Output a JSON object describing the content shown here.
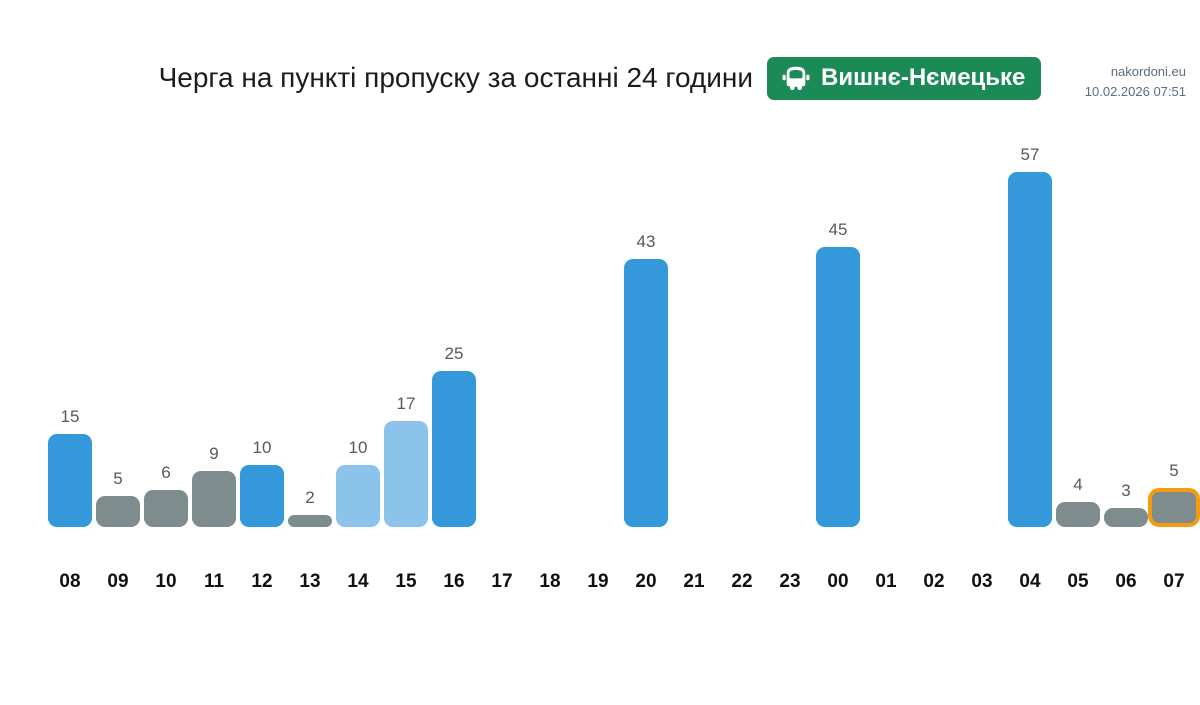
{
  "header": {
    "site": "nakordoni.eu",
    "timestamp": "10.02.2026 07:51"
  },
  "title": "Черга на пункті пропуску за останні 24 години",
  "badge": {
    "label": "Вишнє-Нємецьке",
    "icon": "car-icon",
    "background": "#1b8a57",
    "text_color": "#ffffff"
  },
  "chart_data": {
    "type": "bar",
    "title": "Черга на пункті пропуску за останні 24 години",
    "xlabel": "",
    "ylabel": "",
    "ylim": [
      0,
      60
    ],
    "grid": false,
    "legend": null,
    "categories": [
      "08",
      "09",
      "10",
      "11",
      "12",
      "13",
      "14",
      "15",
      "16",
      "17",
      "18",
      "19",
      "20",
      "21",
      "22",
      "23",
      "00",
      "01",
      "02",
      "03",
      "04",
      "05",
      "06",
      "07"
    ],
    "values": [
      15,
      5,
      6,
      9,
      10,
      2,
      10,
      17,
      25,
      null,
      null,
      null,
      43,
      null,
      null,
      null,
      45,
      null,
      null,
      null,
      57,
      4,
      3,
      5
    ],
    "palette": {
      "blue": "#3498db",
      "lightblue": "#8bc3ea",
      "gray": "#7f8c8d",
      "highlight_border": "#f39c12"
    },
    "bars": [
      {
        "hour": "08",
        "value": 15,
        "color": "blue",
        "highlighted": false
      },
      {
        "hour": "09",
        "value": 5,
        "color": "gray",
        "highlighted": false
      },
      {
        "hour": "10",
        "value": 6,
        "color": "gray",
        "highlighted": false
      },
      {
        "hour": "11",
        "value": 9,
        "color": "gray",
        "highlighted": false
      },
      {
        "hour": "12",
        "value": 10,
        "color": "blue",
        "highlighted": false
      },
      {
        "hour": "13",
        "value": 2,
        "color": "gray",
        "highlighted": false
      },
      {
        "hour": "14",
        "value": 10,
        "color": "lightblue",
        "highlighted": false
      },
      {
        "hour": "15",
        "value": 17,
        "color": "lightblue",
        "highlighted": false
      },
      {
        "hour": "16",
        "value": 25,
        "color": "blue",
        "highlighted": false
      },
      {
        "hour": "17",
        "value": null,
        "color": null,
        "highlighted": false
      },
      {
        "hour": "18",
        "value": null,
        "color": null,
        "highlighted": false
      },
      {
        "hour": "19",
        "value": null,
        "color": null,
        "highlighted": false
      },
      {
        "hour": "20",
        "value": 43,
        "color": "blue",
        "highlighted": false
      },
      {
        "hour": "21",
        "value": null,
        "color": null,
        "highlighted": false
      },
      {
        "hour": "22",
        "value": null,
        "color": null,
        "highlighted": false
      },
      {
        "hour": "23",
        "value": null,
        "color": null,
        "highlighted": false
      },
      {
        "hour": "00",
        "value": 45,
        "color": "blue",
        "highlighted": false
      },
      {
        "hour": "01",
        "value": null,
        "color": null,
        "highlighted": false
      },
      {
        "hour": "02",
        "value": null,
        "color": null,
        "highlighted": false
      },
      {
        "hour": "03",
        "value": null,
        "color": null,
        "highlighted": false
      },
      {
        "hour": "04",
        "value": 57,
        "color": "blue",
        "highlighted": false
      },
      {
        "hour": "05",
        "value": 4,
        "color": "gray",
        "highlighted": false
      },
      {
        "hour": "06",
        "value": 3,
        "color": "gray",
        "highlighted": false
      },
      {
        "hour": "07",
        "value": 5,
        "color": "gray",
        "highlighted": true
      }
    ]
  }
}
